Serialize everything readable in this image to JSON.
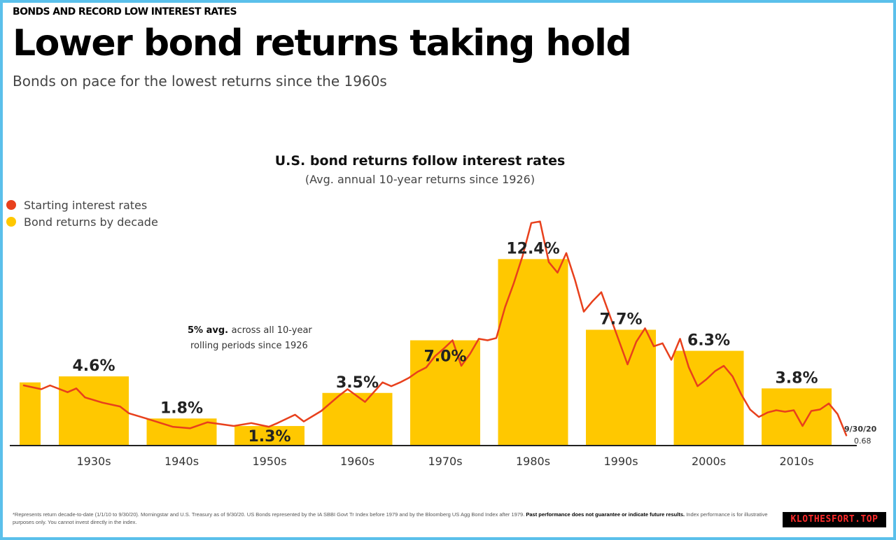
{
  "header": {
    "kicker": "BONDS AND RECORD LOW INTEREST RATES",
    "title": "Lower bond returns taking hold",
    "subtitle": "Bonds on pace for the lowest returns since the 1960s"
  },
  "colors": {
    "bar": "#ffc800",
    "line": "#e8401c",
    "frame": "#5bc0eb"
  },
  "chart_data": {
    "type": "bar",
    "title": "U.S. bond returns follow interest rates",
    "subtitle": "(Avg. annual 10-year returns since 1926)",
    "legend": [
      {
        "name": "Starting interest rates",
        "color": "#e8401c",
        "marker": "circle"
      },
      {
        "name": "Bond returns by decade",
        "color": "#ffc800",
        "marker": "circle"
      }
    ],
    "legend_position": "top-left",
    "categories": [
      "1930s",
      "1940s",
      "1950s",
      "1960s",
      "1970s",
      "1980s",
      "1990s",
      "2000s",
      "2010s"
    ],
    "series": [
      {
        "name": "Bond returns by decade",
        "values": [
          4.6,
          1.8,
          1.3,
          3.5,
          7.0,
          12.4,
          7.7,
          6.3,
          3.8
        ]
      }
    ],
    "value_labels": [
      "4.6%",
      "1.8%",
      "1.3%",
      "3.5%",
      "7.0%",
      "12.4%",
      "7.7%",
      "6.3%",
      "3.8%"
    ],
    "partial_bar_1920s": 4.2,
    "interest_rate_line": {
      "name": "Starting interest rates",
      "points": [
        [
          1926,
          4.0
        ],
        [
          1928,
          3.75
        ],
        [
          1929,
          4.0
        ],
        [
          1931,
          3.55
        ],
        [
          1932,
          3.8
        ],
        [
          1933,
          3.2
        ],
        [
          1935,
          2.85
        ],
        [
          1937,
          2.6
        ],
        [
          1938,
          2.15
        ],
        [
          1940,
          1.8
        ],
        [
          1943,
          1.25
        ],
        [
          1945,
          1.15
        ],
        [
          1947,
          1.55
        ],
        [
          1950,
          1.3
        ],
        [
          1952,
          1.5
        ],
        [
          1954,
          1.25
        ],
        [
          1955,
          1.5
        ],
        [
          1957,
          2.05
        ],
        [
          1958,
          1.6
        ],
        [
          1960,
          2.3
        ],
        [
          1962,
          3.3
        ],
        [
          1963,
          3.75
        ],
        [
          1965,
          2.9
        ],
        [
          1967,
          4.2
        ],
        [
          1968,
          3.95
        ],
        [
          1969,
          4.2
        ],
        [
          1970,
          4.5
        ],
        [
          1971,
          4.9
        ],
        [
          1972,
          5.2
        ],
        [
          1973,
          5.95
        ],
        [
          1974,
          6.45
        ],
        [
          1975,
          7.0
        ],
        [
          1976,
          5.3
        ],
        [
          1977,
          6.1
        ],
        [
          1978,
          7.1
        ],
        [
          1979,
          7.0
        ],
        [
          1980,
          7.15
        ],
        [
          1981,
          9.2
        ],
        [
          1982,
          10.8
        ],
        [
          1983,
          12.6
        ],
        [
          1984,
          14.8
        ],
        [
          1985,
          14.9
        ],
        [
          1986,
          12.2
        ],
        [
          1987,
          11.5
        ],
        [
          1988,
          12.8
        ],
        [
          1989,
          11.0
        ],
        [
          1990,
          8.9
        ],
        [
          1991,
          9.6
        ],
        [
          1992,
          10.2
        ],
        [
          1993,
          8.6
        ],
        [
          1994,
          7.0
        ],
        [
          1995,
          5.4
        ],
        [
          1996,
          6.9
        ],
        [
          1997,
          7.8
        ],
        [
          1998,
          6.6
        ],
        [
          1999,
          6.8
        ],
        [
          2000,
          5.7
        ],
        [
          2001,
          7.1
        ],
        [
          2002,
          5.2
        ],
        [
          2003,
          3.95
        ],
        [
          2004,
          4.4
        ],
        [
          2005,
          4.95
        ],
        [
          2006,
          5.3
        ],
        [
          2007,
          4.6
        ],
        [
          2008,
          3.4
        ],
        [
          2009,
          2.4
        ],
        [
          2010,
          1.9
        ],
        [
          2011,
          2.2
        ],
        [
          2012,
          2.35
        ],
        [
          2013,
          2.25
        ],
        [
          2014,
          2.35
        ],
        [
          2015,
          1.3
        ],
        [
          2016,
          2.3
        ],
        [
          2017,
          2.4
        ],
        [
          2018,
          2.8
        ],
        [
          2019,
          2.1
        ],
        [
          2020,
          0.68
        ]
      ]
    },
    "annotation": {
      "bold": "5% avg.",
      "rest_line1": "across all 10-year",
      "line2": "rolling periods since 1926"
    },
    "end_label": {
      "date": "9/30/20",
      "value": "0.68"
    },
    "ylim": [
      0,
      15
    ],
    "grid": false
  },
  "footnote": {
    "text": "*Represents return decade-to-date (1/1/10 to 9/30/20). Morningstar and U.S. Treasury as of 9/30/20. US Bonds represented by the IA SBBI Govt Tr Index before 1979 and by the Bloomberg US Agg Bond Index after 1979.",
    "bold_part": "Past performance does not guarantee or indicate future results.",
    "tail": "Index performance is for illustrative purposes only. You cannot invest directly in the index."
  },
  "watermark": "KLOTHESFORT.TOP"
}
